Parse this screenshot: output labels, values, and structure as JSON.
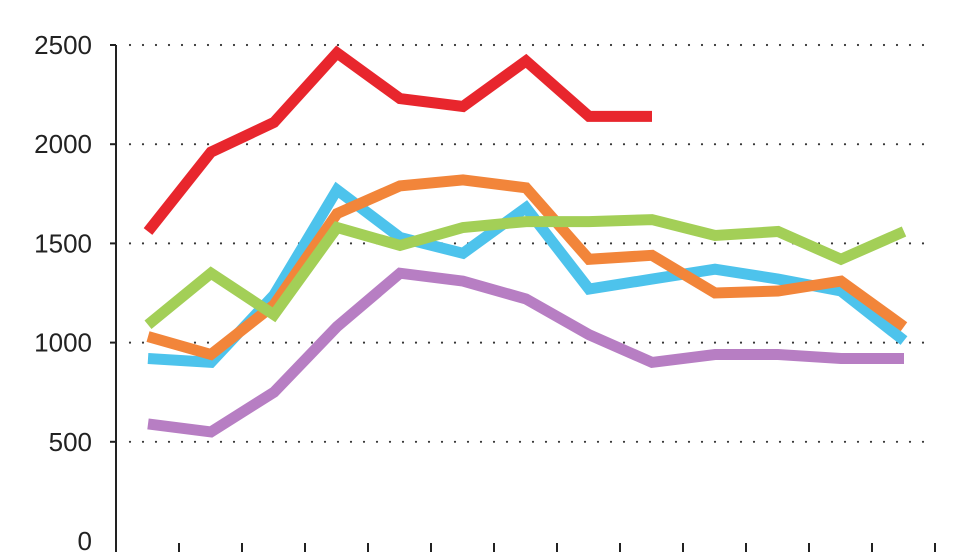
{
  "chart_data": {
    "type": "line",
    "title": "",
    "xlabel": "",
    "ylabel": "",
    "ylim": [
      0,
      2500
    ],
    "yticks": [
      0,
      500,
      1000,
      1500,
      2000,
      2500
    ],
    "grid": true,
    "legend": "none",
    "x": [
      1,
      2,
      3,
      4,
      5,
      6,
      7,
      8,
      9,
      10,
      11,
      12,
      13
    ],
    "series": [
      {
        "color": "#e8262d",
        "values": [
          1560,
          1960,
          2110,
          2460,
          2230,
          2190,
          2420,
          2140,
          2140,
          null,
          null,
          null,
          null
        ]
      },
      {
        "color": "#4dc3ec",
        "values": [
          920,
          900,
          1240,
          1770,
          1530,
          1450,
          1680,
          1270,
          1320,
          1370,
          1320,
          1260,
          1010
        ]
      },
      {
        "color": "#f2853a",
        "values": [
          1030,
          940,
          1190,
          1650,
          1790,
          1820,
          1780,
          1420,
          1440,
          1250,
          1260,
          1310,
          1080
        ]
      },
      {
        "color": "#a3cf57",
        "values": [
          1090,
          1350,
          1140,
          1580,
          1490,
          1580,
          1610,
          1610,
          1620,
          1540,
          1560,
          1420,
          1560
        ]
      },
      {
        "color": "#b77ec3",
        "values": [
          590,
          550,
          750,
          1080,
          1350,
          1310,
          1220,
          1040,
          900,
          940,
          940,
          920,
          920
        ]
      }
    ]
  }
}
